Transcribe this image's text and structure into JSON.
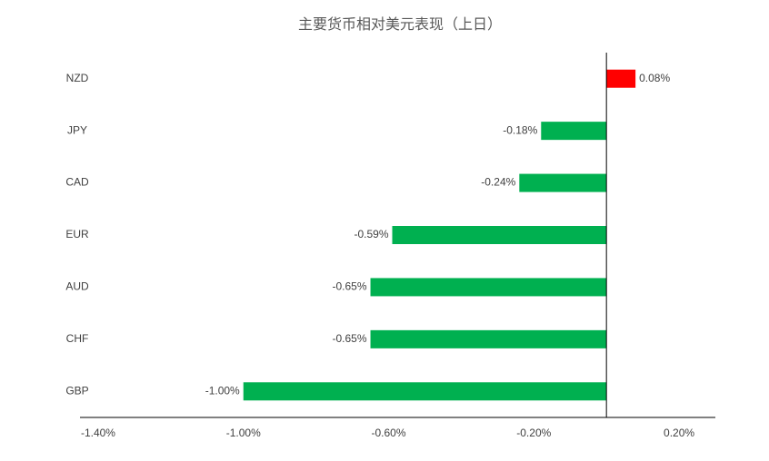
{
  "chart_data": {
    "type": "bar",
    "orientation": "horizontal",
    "title": "主要货币相对美元表现（上日）",
    "categories": [
      "NZD",
      "JPY",
      "CAD",
      "EUR",
      "AUD",
      "CHF",
      "GBP"
    ],
    "values": [
      0.08,
      -0.18,
      -0.24,
      -0.59,
      -0.65,
      -0.65,
      -1.0
    ],
    "value_labels": [
      "0.08%",
      "-0.18%",
      "-0.24%",
      "-0.59%",
      "-0.65%",
      "-0.65%",
      "-1.00%"
    ],
    "colors": [
      "#ff0000",
      "#00b050",
      "#00b050",
      "#00b050",
      "#00b050",
      "#00b050",
      "#00b050"
    ],
    "xlim": [
      -1.45,
      0.3
    ],
    "xticks": [
      {
        "value": -1.4,
        "label": "-1.40%"
      },
      {
        "value": -1.0,
        "label": "-1.00%"
      },
      {
        "value": -0.6,
        "label": "-0.60%"
      },
      {
        "value": -0.2,
        "label": "-0.20%"
      },
      {
        "value": 0.2,
        "label": "0.20%"
      }
    ],
    "grid": false
  }
}
